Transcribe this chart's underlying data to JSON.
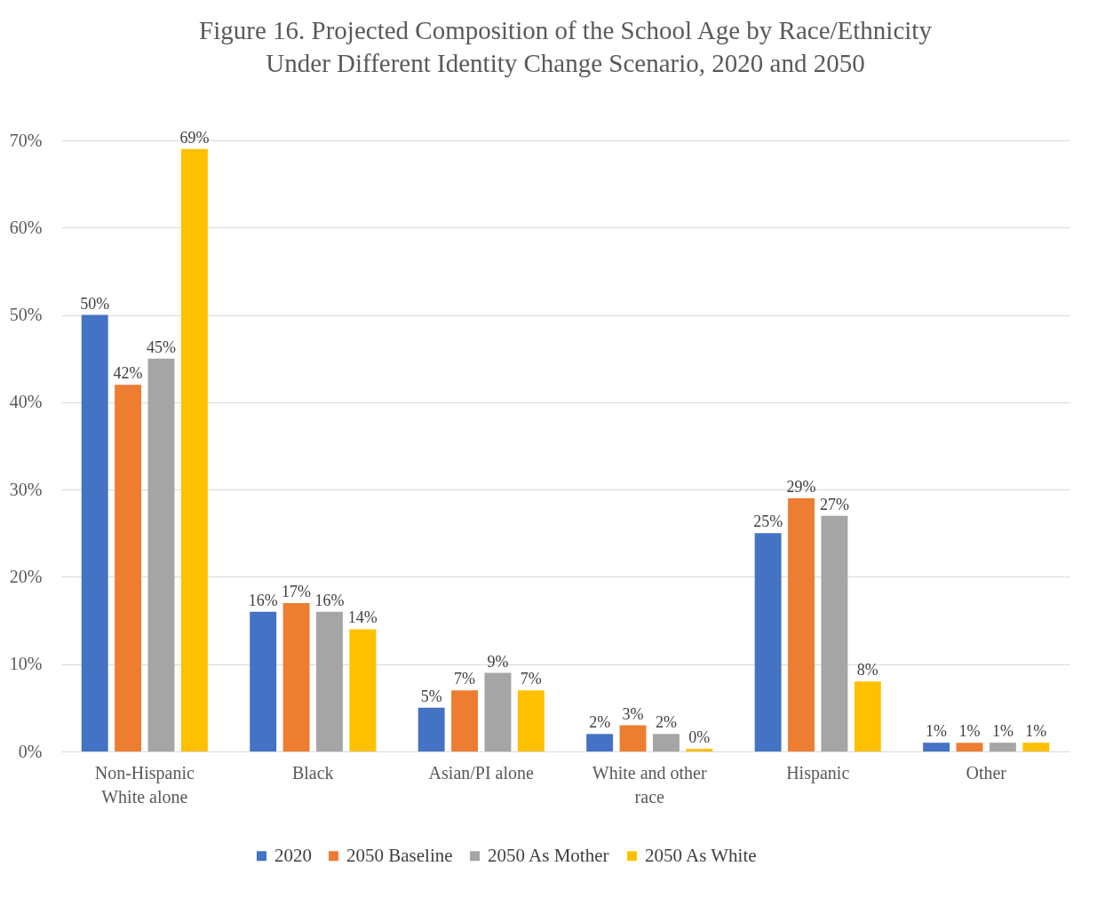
{
  "chart_data": {
    "type": "bar",
    "title": "Figure 16. Projected Composition of the School Age by Race/Ethnicity\nUnder Different Identity Change Scenario, 2020 and 2050",
    "categories": [
      "Non-Hispanic White alone",
      "Black",
      "Asian/PI alone",
      "White and other race",
      "Hispanic",
      "Other"
    ],
    "series": [
      {
        "name": "2020",
        "color": "#4472c4",
        "values": [
          50,
          16,
          5,
          2,
          25,
          1
        ],
        "value_labels": [
          "50%",
          "16%",
          "5%",
          "2%",
          "25%",
          "1%"
        ]
      },
      {
        "name": "2050 Baseline",
        "color": "#ed7d31",
        "values": [
          42,
          17,
          7,
          3,
          29,
          1
        ],
        "value_labels": [
          "42%",
          "17%",
          "7%",
          "3%",
          "29%",
          "1%"
        ]
      },
      {
        "name": "2050 As Mother",
        "color": "#a5a5a5",
        "values": [
          45,
          16,
          9,
          2,
          27,
          1
        ],
        "value_labels": [
          "45%",
          "16%",
          "9%",
          "2%",
          "27%",
          "1%"
        ]
      },
      {
        "name": "2050 As White",
        "color": "#ffc000",
        "values": [
          69,
          14,
          7,
          0.3,
          8,
          1
        ],
        "value_labels": [
          "69%",
          "14%",
          "7%",
          "0%",
          "8%",
          "1%"
        ]
      }
    ],
    "ylim": [
      0,
      70
    ],
    "yticks": [
      {
        "value": 0,
        "label": "0%"
      },
      {
        "value": 10,
        "label": "10%"
      },
      {
        "value": 20,
        "label": "20%"
      },
      {
        "value": 30,
        "label": "30%"
      },
      {
        "value": 40,
        "label": "40%"
      },
      {
        "value": 50,
        "label": "50%"
      },
      {
        "value": 60,
        "label": "60%"
      },
      {
        "value": 70,
        "label": "70%"
      }
    ],
    "grid": "y",
    "legend": "bottom"
  }
}
